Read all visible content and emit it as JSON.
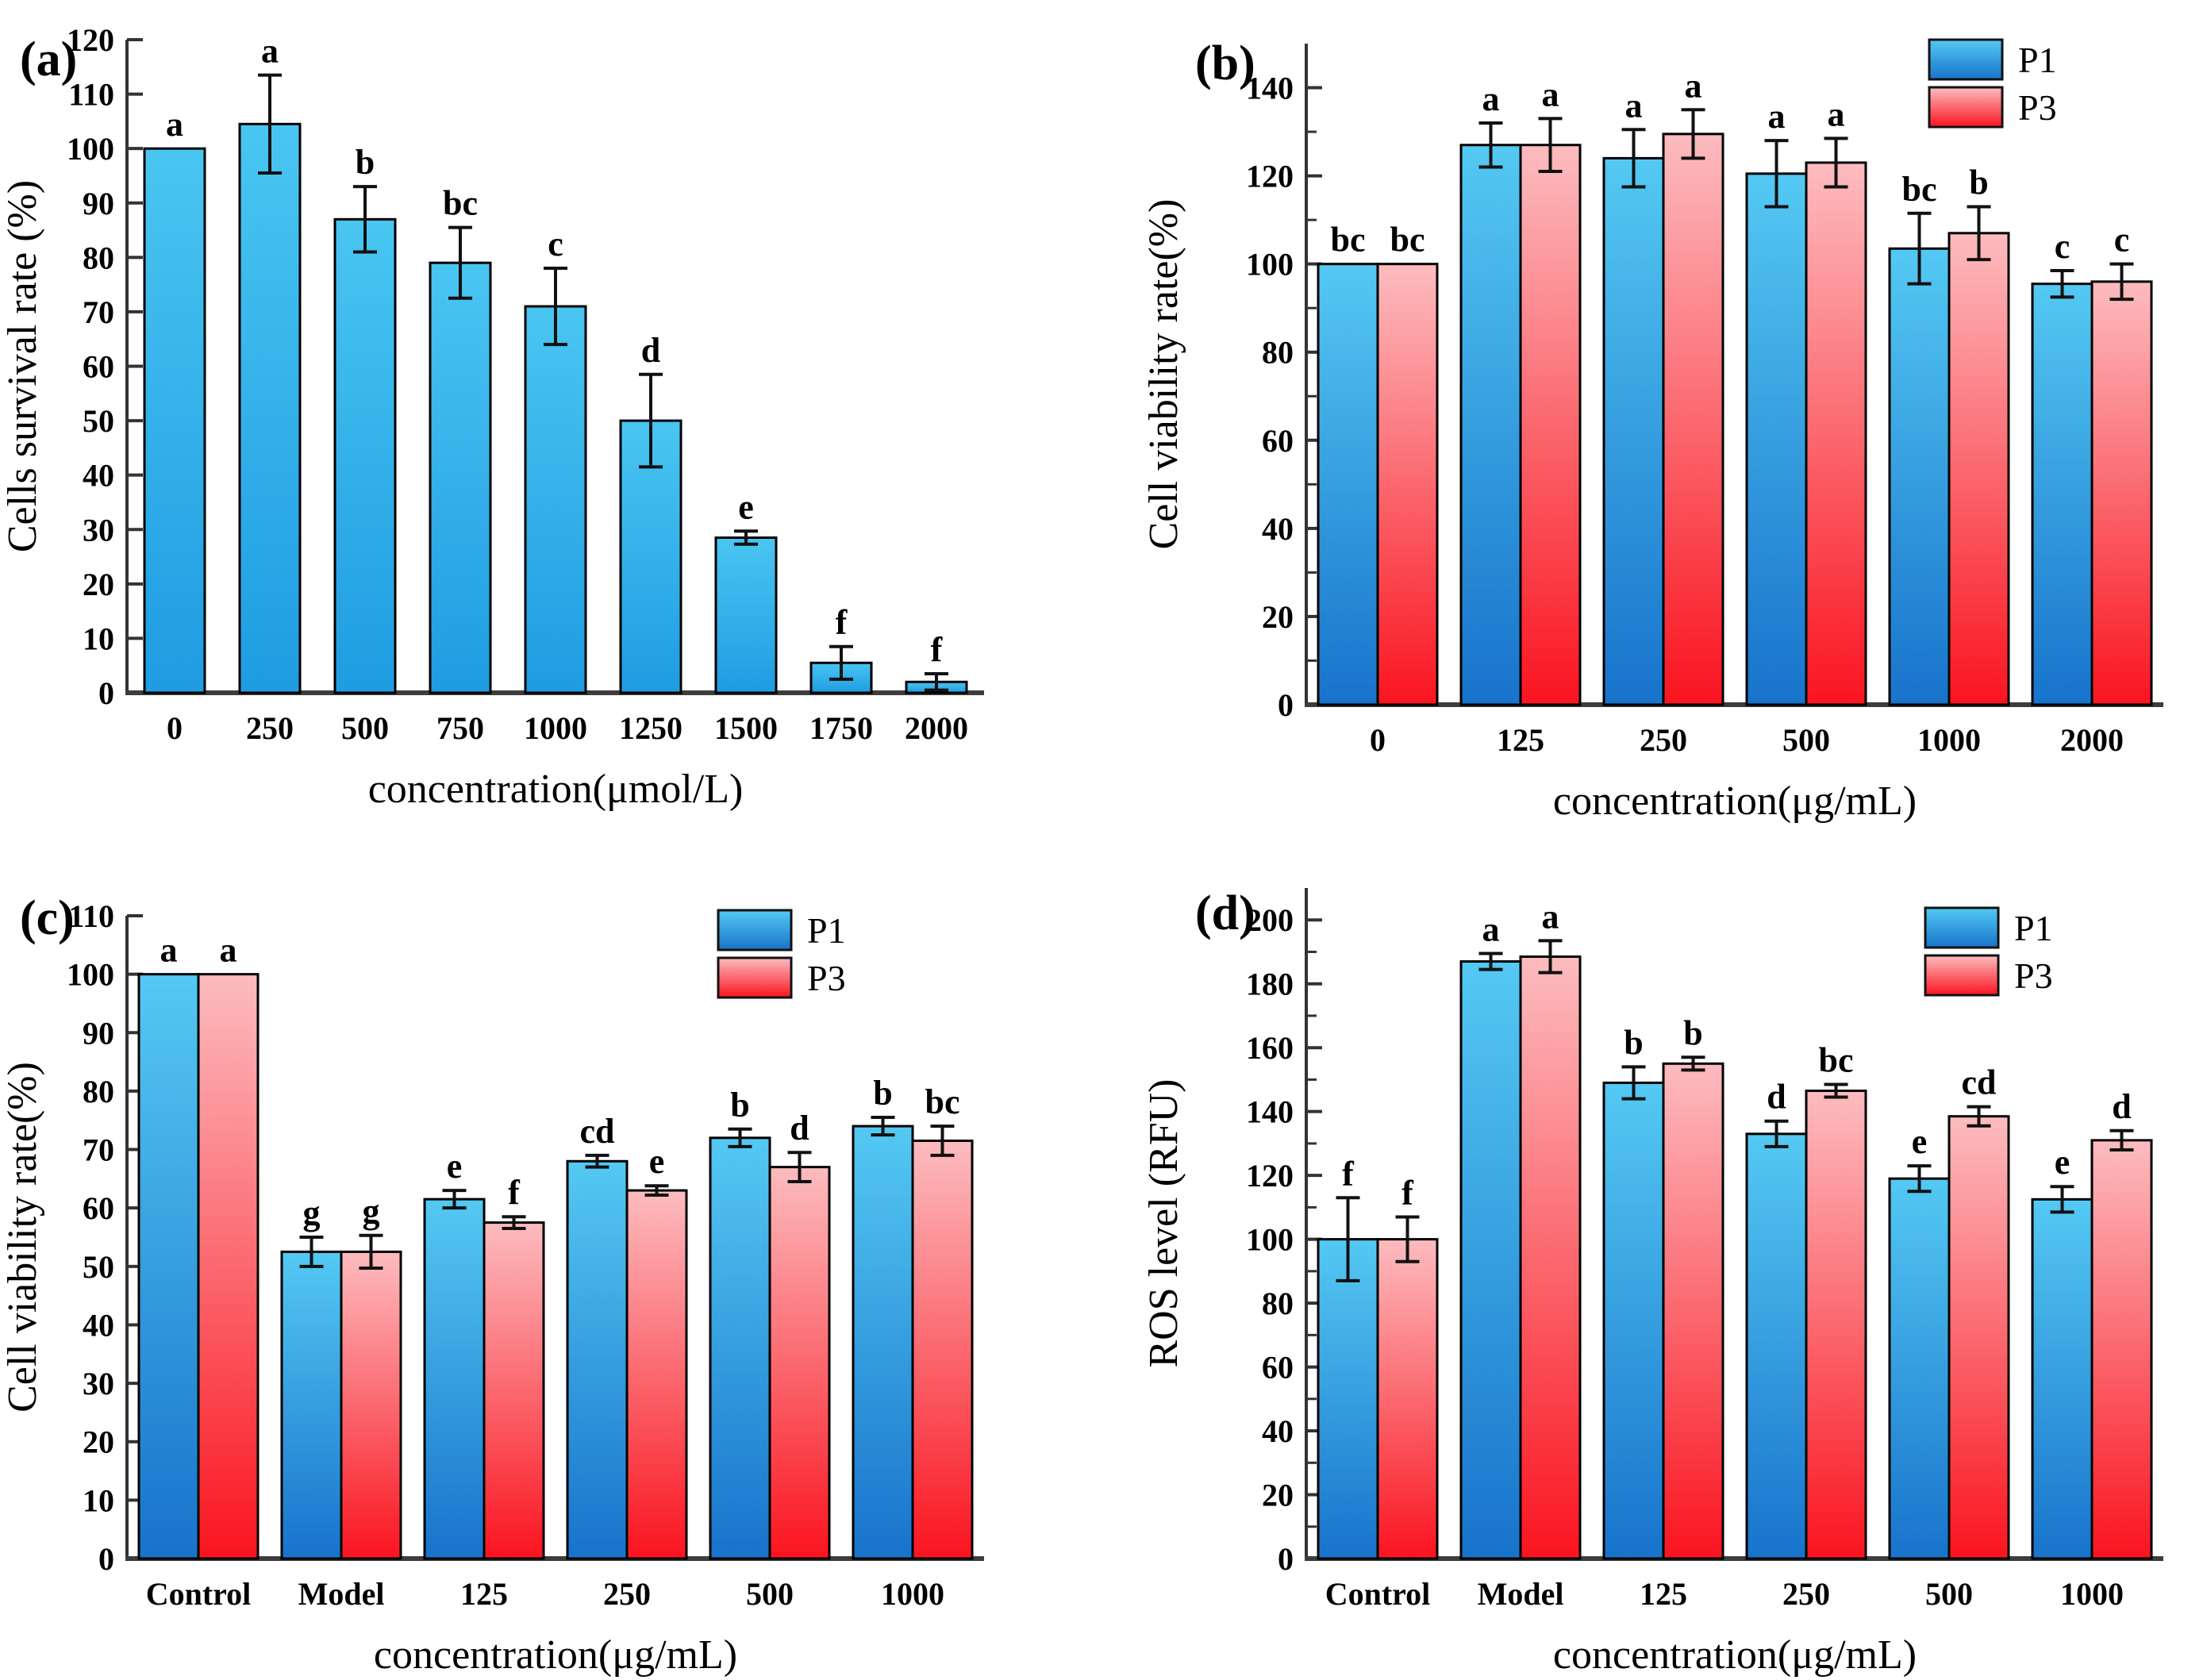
{
  "page": {
    "background": "#ffffff"
  },
  "colors": {
    "axis": "#333333",
    "baseline": "#3d3d3d",
    "error_bar": "#111111",
    "text": "#000000",
    "gradients": {
      "blueA": {
        "top": "#49c6f1",
        "bottom": "#1f9ce2"
      },
      "blue": {
        "top": "#54c9f3",
        "bottom": "#1873cb"
      },
      "red": {
        "top": "#fcbcbf",
        "bottom": "#fa141f"
      }
    }
  },
  "chart_data": [
    {
      "tag": "(a)",
      "type": "bar",
      "xlabel": "concentration(μmol/L)",
      "ylabel": "Cells survival rate (%)",
      "categories": [
        "0",
        "250",
        "500",
        "750",
        "1000",
        "1250",
        "1500",
        "1750",
        "2000"
      ],
      "series": [
        {
          "name": "",
          "color": "blueA",
          "values": [
            100,
            104.5,
            87,
            79,
            71,
            50,
            28.5,
            5.5,
            2
          ],
          "errors": [
            0,
            9,
            6,
            6.5,
            7,
            8.5,
            1.2,
            3,
            1.5
          ],
          "letters": [
            "a",
            "a",
            "b",
            "bc",
            "c",
            "d",
            "e",
            "f",
            "f"
          ]
        }
      ],
      "ylim": [
        0,
        120
      ],
      "ytick_step": 10,
      "ytick_label_max": 120,
      "minor_ticks": false,
      "grid": false,
      "legend": null
    },
    {
      "tag": "(b)",
      "type": "bar",
      "xlabel": "concentration(μg/mL)",
      "ylabel": "Cell viability rate(%)",
      "categories": [
        "0",
        "125",
        "250",
        "500",
        "1000",
        "2000"
      ],
      "series": [
        {
          "name": "P1",
          "color": "blue",
          "values": [
            100,
            127,
            124,
            120.5,
            103.5,
            95.5
          ],
          "errors": [
            0,
            5,
            6.5,
            7.5,
            8,
            3
          ],
          "letters": [
            "bc",
            "a",
            "a",
            "a",
            "bc",
            "c"
          ]
        },
        {
          "name": "P3",
          "color": "red",
          "values": [
            100,
            127,
            129.5,
            123,
            107,
            96
          ],
          "errors": [
            0,
            6,
            5.5,
            5.5,
            6,
            4
          ],
          "letters": [
            "bc",
            "a",
            "a",
            "a",
            "b",
            "c"
          ]
        }
      ],
      "ylim": [
        0,
        150
      ],
      "ytick_step": 20,
      "ytick_label_max": 140,
      "minor_ticks": true,
      "grid": false,
      "legend": {
        "labels": [
          "P1",
          "P3"
        ],
        "position": "top-right"
      }
    },
    {
      "tag": "(c)",
      "type": "bar",
      "xlabel": "concentration(μg/mL)",
      "ylabel": "Cell viability rate(%)",
      "categories": [
        "Control",
        "Model",
        "125",
        "250",
        "500",
        "1000"
      ],
      "series": [
        {
          "name": "P1",
          "color": "blue",
          "values": [
            100,
            52.5,
            61.5,
            68,
            72,
            74
          ],
          "errors": [
            0,
            2.5,
            1.5,
            1,
            1.5,
            1.5
          ],
          "letters": [
            "a",
            "g",
            "e",
            "cd",
            "b",
            "b"
          ]
        },
        {
          "name": "P3",
          "color": "red",
          "values": [
            100,
            52.5,
            57.5,
            63,
            67,
            71.5
          ],
          "errors": [
            0,
            2.8,
            1,
            0.8,
            2.5,
            2.5
          ],
          "letters": [
            "a",
            "g",
            "f",
            "e",
            "d",
            "bc"
          ]
        }
      ],
      "ylim": [
        0,
        110
      ],
      "ytick_step": 10,
      "ytick_label_max": 110,
      "minor_ticks": false,
      "grid": false,
      "legend": {
        "labels": [
          "P1",
          "P3"
        ],
        "position": "top-right"
      }
    },
    {
      "tag": "(d)",
      "type": "bar",
      "xlabel": "concentration(μg/mL)",
      "ylabel": "ROS level (RFU)",
      "categories": [
        "Control",
        "Model",
        "125",
        "250",
        "500",
        "1000"
      ],
      "series": [
        {
          "name": "P1",
          "color": "blue",
          "values": [
            100,
            187,
            149,
            133,
            119,
            112.5
          ],
          "errors": [
            13,
            2.5,
            5,
            4,
            4,
            4
          ],
          "letters": [
            "f",
            "a",
            "b",
            "d",
            "e",
            "e"
          ]
        },
        {
          "name": "P3",
          "color": "red",
          "values": [
            100,
            188.5,
            155,
            146.5,
            138.5,
            131
          ],
          "errors": [
            7,
            5,
            2,
            2,
            3,
            3
          ],
          "letters": [
            "f",
            "a",
            "b",
            "bc",
            "cd",
            "d"
          ]
        }
      ],
      "ylim": [
        0,
        210
      ],
      "ytick_step": 20,
      "ytick_label_max": 200,
      "minor_ticks": true,
      "grid": false,
      "legend": {
        "labels": [
          "P1",
          "P3"
        ],
        "position": "top-right"
      }
    }
  ]
}
